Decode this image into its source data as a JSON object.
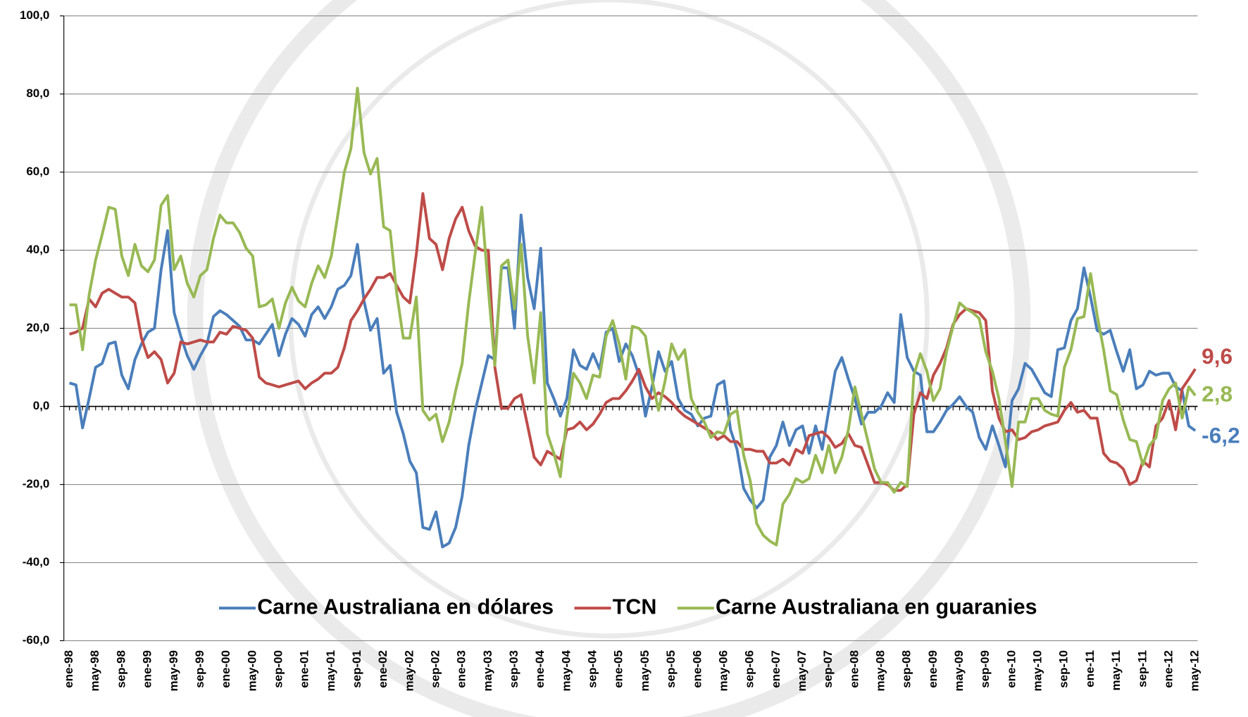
{
  "chart_data": {
    "type": "line",
    "categories": [
      "ene-98",
      null,
      null,
      null,
      "may-98",
      null,
      null,
      null,
      "sep-98",
      null,
      null,
      null,
      "ene-99",
      null,
      null,
      null,
      "may-99",
      null,
      null,
      null,
      "sep-99",
      null,
      null,
      null,
      "ene-00",
      null,
      null,
      null,
      "may-00",
      null,
      null,
      null,
      "sep-00",
      null,
      null,
      null,
      "ene-01",
      null,
      null,
      null,
      "may-01",
      null,
      null,
      null,
      "sep-01",
      null,
      null,
      null,
      "ene-02",
      null,
      null,
      null,
      "may-02",
      null,
      null,
      null,
      "sep-02",
      null,
      null,
      null,
      "ene-03",
      null,
      null,
      null,
      "may-03",
      null,
      null,
      null,
      "sep-03",
      null,
      null,
      null,
      "ene-04",
      null,
      null,
      null,
      "may-04",
      null,
      null,
      null,
      "sep-04",
      null,
      null,
      null,
      "ene-05",
      null,
      null,
      null,
      "may-05",
      null,
      null,
      null,
      "sep-05",
      null,
      null,
      null,
      "ene-06",
      null,
      null,
      null,
      "may-06",
      null,
      null,
      null,
      "sep-06",
      null,
      null,
      null,
      "ene-07",
      null,
      null,
      null,
      "may-07",
      null,
      null,
      null,
      "sep-07",
      null,
      null,
      null,
      "ene-08",
      null,
      null,
      null,
      "may-08",
      null,
      null,
      null,
      "sep-08",
      null,
      null,
      null,
      "ene-09",
      null,
      null,
      null,
      "may-09",
      null,
      null,
      null,
      "sep-09",
      null,
      null,
      null,
      "ene-10",
      null,
      null,
      null,
      "may-10",
      null,
      null,
      null,
      "sep-10",
      null,
      null,
      null,
      "ene-11",
      null,
      null,
      null,
      "may-11",
      null,
      null,
      null,
      "sep-11",
      null,
      null,
      null,
      "ene-12",
      null,
      null,
      null,
      "may-12"
    ],
    "series": [
      {
        "name": "Carne Australiana en dólares",
        "color": "#4a7ebb",
        "values": [
          6,
          5.5,
          -5.5,
          2,
          10,
          11,
          16,
          16.5,
          8,
          4.5,
          12,
          16,
          19,
          20,
          35,
          45,
          24,
          18,
          13,
          9.5,
          13,
          16,
          23,
          24.5,
          23.5,
          22,
          20.5,
          17,
          17,
          16,
          18.5,
          21,
          13,
          18.5,
          22.5,
          21,
          18,
          23.5,
          25.5,
          22.5,
          25.5,
          30,
          31,
          33.5,
          41.5,
          27,
          19.5,
          22.5,
          8.5,
          10.5,
          -1.5,
          -7,
          -14,
          -17,
          -31,
          -31.5,
          -27,
          -36,
          -35,
          -31,
          -23,
          -10,
          -1,
          6,
          13,
          12,
          35.5,
          35.5,
          20,
          49,
          33,
          25,
          40.5,
          6,
          2,
          -2.5,
          2,
          14.5,
          10.5,
          9.5,
          13.5,
          9.5,
          19,
          20,
          11.5,
          16,
          13,
          8,
          -2.5,
          5,
          14,
          9,
          11.5,
          2,
          -1,
          -2,
          -5,
          -3,
          -2.5,
          5.5,
          6.5,
          -6,
          -11,
          -21,
          -24,
          -26,
          -24,
          -13,
          -10,
          -4,
          -10,
          -6,
          -5,
          -12,
          -5,
          -11,
          -1,
          9,
          12.5,
          7,
          2,
          -4.5,
          -1.5,
          -1.5,
          0,
          3.5,
          1,
          23.5,
          12.5,
          9,
          8,
          -6.5,
          -6.5,
          -4,
          -1,
          0.5,
          2.5,
          0,
          -1.5,
          -8,
          -11,
          -5,
          -10,
          -15.5,
          1.5,
          4.5,
          11,
          9.5,
          6.5,
          3.5,
          2.5,
          14.5,
          15,
          22,
          25,
          35.5,
          28,
          19.5,
          18.5,
          19.5,
          14,
          9,
          14.5,
          4.5,
          5.5,
          9,
          8,
          8.5,
          8.5,
          5,
          4,
          -5,
          -6.2
        ],
        "value_labels": [
          null,
          null,
          null,
          null,
          null,
          null,
          null,
          null,
          null,
          null,
          null,
          null,
          null,
          null,
          null,
          null,
          null,
          null,
          null,
          null,
          null,
          null,
          null,
          null,
          null,
          null,
          null,
          null,
          null,
          null,
          null,
          null,
          null,
          null,
          null,
          null,
          null,
          null,
          null,
          null,
          null,
          null,
          null,
          null,
          null,
          null,
          null,
          null,
          null,
          null,
          null,
          null,
          null,
          null,
          null,
          null,
          null,
          null,
          null,
          null,
          null,
          null,
          null,
          null,
          null,
          null,
          null,
          null,
          null,
          null,
          null,
          null,
          null,
          null,
          null,
          null,
          null,
          null,
          null,
          null,
          null,
          null,
          null,
          null,
          null,
          null,
          null,
          null,
          null,
          null,
          null,
          null,
          null,
          null,
          null,
          null,
          null,
          null,
          null,
          null,
          null,
          null,
          null,
          null,
          null,
          null,
          null,
          null,
          null,
          null,
          null,
          null,
          null,
          null,
          null,
          null,
          null,
          null,
          null,
          null,
          null,
          null,
          null,
          null,
          null,
          null,
          null,
          null,
          null,
          null,
          null,
          null,
          null,
          null,
          null,
          null,
          null,
          null,
          null,
          null,
          null,
          null,
          null,
          null,
          null,
          null,
          null,
          null,
          null,
          null,
          null,
          null,
          null,
          null,
          null,
          null,
          null,
          null,
          null,
          null,
          null,
          null,
          null,
          null,
          null,
          null,
          null,
          null,
          null,
          null,
          null,
          null,
          "-6,2"
        ]
      },
      {
        "name": "TCN",
        "color": "#be4b48",
        "values": [
          18.5,
          19,
          20,
          27.5,
          25.5,
          29,
          30,
          29,
          28,
          28,
          26.5,
          17.5,
          12.5,
          14,
          12,
          6,
          8.5,
          16.5,
          16,
          16.5,
          17,
          16.5,
          16.5,
          19,
          18.5,
          20.5,
          20,
          19.5,
          17.5,
          7.5,
          6,
          5.5,
          5,
          5.5,
          6,
          6.5,
          4.5,
          6,
          7,
          8.5,
          8.5,
          10,
          15,
          22,
          24.5,
          27.5,
          30,
          33,
          33,
          34,
          31,
          28,
          26.5,
          39,
          54.5,
          43,
          41.5,
          35,
          43,
          48,
          51,
          45,
          41,
          40,
          40,
          10,
          -0.5,
          -0.5,
          2,
          3,
          -5,
          -13,
          -15,
          -11.5,
          -12.5,
          -13.5,
          -6,
          -5.5,
          -4,
          -6,
          -4.5,
          -2,
          1,
          2,
          2,
          4,
          6.5,
          9.5,
          5,
          2,
          3.5,
          2.5,
          1,
          -1,
          -2.5,
          -3.5,
          -4.5,
          -5.5,
          -6.5,
          -8.5,
          -7.5,
          -9,
          -9,
          -11,
          -11,
          -11.5,
          -11.5,
          -14.5,
          -14.5,
          -13.5,
          -15,
          -11,
          -12,
          -7.5,
          -7,
          -6.5,
          -8,
          -10.5,
          -9.5,
          -7,
          -10,
          -10.5,
          -15,
          -19.5,
          -19.5,
          -20,
          -21.5,
          -21.5,
          -20,
          -2,
          3.5,
          2,
          8,
          11,
          15,
          21,
          23.5,
          25,
          24.5,
          24,
          22,
          4,
          -3,
          -6.5,
          -6,
          -8.5,
          -8,
          -6.5,
          -6,
          -5,
          -4.5,
          -4,
          -1,
          1,
          -1.5,
          -1,
          -3,
          -3,
          -12,
          -14,
          -14.5,
          -16,
          -20,
          -19,
          -14,
          -15.5,
          -5,
          -3,
          1.5,
          -6,
          4.5,
          7,
          9.6
        ],
        "value_labels": [
          null,
          null,
          null,
          null,
          null,
          null,
          null,
          null,
          null,
          null,
          null,
          null,
          null,
          null,
          null,
          null,
          null,
          null,
          null,
          null,
          null,
          null,
          null,
          null,
          null,
          null,
          null,
          null,
          null,
          null,
          null,
          null,
          null,
          null,
          null,
          null,
          null,
          null,
          null,
          null,
          null,
          null,
          null,
          null,
          null,
          null,
          null,
          null,
          null,
          null,
          null,
          null,
          null,
          null,
          null,
          null,
          null,
          null,
          null,
          null,
          null,
          null,
          null,
          null,
          null,
          null,
          null,
          null,
          null,
          null,
          null,
          null,
          null,
          null,
          null,
          null,
          null,
          null,
          null,
          null,
          null,
          null,
          null,
          null,
          null,
          null,
          null,
          null,
          null,
          null,
          null,
          null,
          null,
          null,
          null,
          null,
          null,
          null,
          null,
          null,
          null,
          null,
          null,
          null,
          null,
          null,
          null,
          null,
          null,
          null,
          null,
          null,
          null,
          null,
          null,
          null,
          null,
          null,
          null,
          null,
          null,
          null,
          null,
          null,
          null,
          null,
          null,
          null,
          null,
          null,
          null,
          null,
          null,
          null,
          null,
          null,
          null,
          null,
          null,
          null,
          null,
          null,
          null,
          null,
          null,
          null,
          null,
          null,
          null,
          null,
          null,
          null,
          null,
          null,
          null,
          null,
          null,
          null,
          null,
          null,
          null,
          null,
          null,
          null,
          null,
          null,
          null,
          null,
          null,
          null,
          null,
          null,
          "9,6"
        ]
      },
      {
        "name": "Carne Australiana en guaranies",
        "color": "#98b954",
        "values": [
          26,
          26,
          14.5,
          28.5,
          37.5,
          44,
          51,
          50.5,
          38.5,
          33.5,
          41.5,
          36,
          34.5,
          37.5,
          51.5,
          54,
          35,
          38.5,
          31.5,
          28,
          33.5,
          35,
          43,
          49,
          47,
          47,
          44.5,
          40.5,
          38.5,
          25.5,
          26,
          27.5,
          20,
          26.5,
          30.5,
          27,
          25.5,
          31.5,
          36,
          33,
          38.5,
          49,
          60,
          66,
          81.5,
          65,
          59.5,
          63.5,
          46,
          45,
          29,
          17.5,
          17.5,
          28,
          -1,
          -3.5,
          -2,
          -9,
          -4,
          4,
          11,
          26.5,
          39.5,
          51,
          30,
          10.5,
          36,
          37.5,
          25,
          41.5,
          18,
          6,
          24,
          -7,
          -12,
          -18,
          -3,
          8.5,
          6,
          2,
          8,
          7.5,
          18,
          22,
          16,
          7,
          20.5,
          20,
          18,
          7,
          -1,
          6.5,
          16,
          12,
          14.5,
          2,
          -1.5,
          -4,
          -8,
          -6.5,
          -7,
          -2,
          -1,
          -12.5,
          -19,
          -30,
          -33,
          -34.5,
          -35.5,
          -25,
          -22.5,
          -18.5,
          -19.5,
          -18.5,
          -12.5,
          -17,
          -10,
          -17,
          -13,
          -6,
          5,
          -2,
          -9,
          -16,
          -19.5,
          -19.5,
          -22,
          -19.5,
          -20.5,
          8,
          13.5,
          9,
          1.5,
          4.5,
          14,
          20.5,
          26.5,
          25,
          24,
          22.5,
          14,
          9,
          2,
          -9,
          -20.5,
          -4,
          -4,
          2,
          2,
          -1,
          -2,
          -2.5,
          10,
          14.5,
          22.5,
          23,
          34,
          23.5,
          14.5,
          4,
          3,
          -3.5,
          -8.5,
          -9,
          -15,
          -10,
          -8,
          1.5,
          4.5,
          6,
          -3,
          5,
          2.8
        ],
        "value_labels": [
          null,
          null,
          null,
          null,
          null,
          null,
          null,
          null,
          null,
          null,
          null,
          null,
          null,
          null,
          null,
          null,
          null,
          null,
          null,
          null,
          null,
          null,
          null,
          null,
          null,
          null,
          null,
          null,
          null,
          null,
          null,
          null,
          null,
          null,
          null,
          null,
          null,
          null,
          null,
          null,
          null,
          null,
          null,
          null,
          null,
          null,
          null,
          null,
          null,
          null,
          null,
          null,
          null,
          null,
          null,
          null,
          null,
          null,
          null,
          null,
          null,
          null,
          null,
          null,
          null,
          null,
          null,
          null,
          null,
          null,
          null,
          null,
          null,
          null,
          null,
          null,
          null,
          null,
          null,
          null,
          null,
          null,
          null,
          null,
          null,
          null,
          null,
          null,
          null,
          null,
          null,
          null,
          null,
          null,
          null,
          null,
          null,
          null,
          null,
          null,
          null,
          null,
          null,
          null,
          null,
          null,
          null,
          null,
          null,
          null,
          null,
          null,
          null,
          null,
          null,
          null,
          null,
          null,
          null,
          null,
          null,
          null,
          null,
          null,
          null,
          null,
          null,
          null,
          null,
          null,
          null,
          null,
          null,
          null,
          null,
          null,
          null,
          null,
          null,
          null,
          null,
          null,
          null,
          null,
          null,
          null,
          null,
          null,
          null,
          null,
          null,
          null,
          null,
          null,
          null,
          null,
          null,
          null,
          null,
          null,
          null,
          null,
          null,
          null,
          null,
          null,
          null,
          null,
          null,
          null,
          null,
          null,
          "2,8"
        ]
      }
    ],
    "ylim": [
      -60,
      100
    ],
    "yticks": [
      {
        "value": -60,
        "label": "-60,0"
      },
      {
        "value": -40,
        "label": "-40,0"
      },
      {
        "value": -20,
        "label": "-20,0"
      },
      {
        "value": 0,
        "label": "0,0"
      },
      {
        "value": 20,
        "label": "20,0"
      },
      {
        "value": 40,
        "label": "40,0"
      },
      {
        "value": 60,
        "label": "60,0"
      },
      {
        "value": 80,
        "label": "80,0"
      },
      {
        "value": 100,
        "label": "100,0"
      }
    ],
    "grid": true,
    "legend": "bottom"
  }
}
